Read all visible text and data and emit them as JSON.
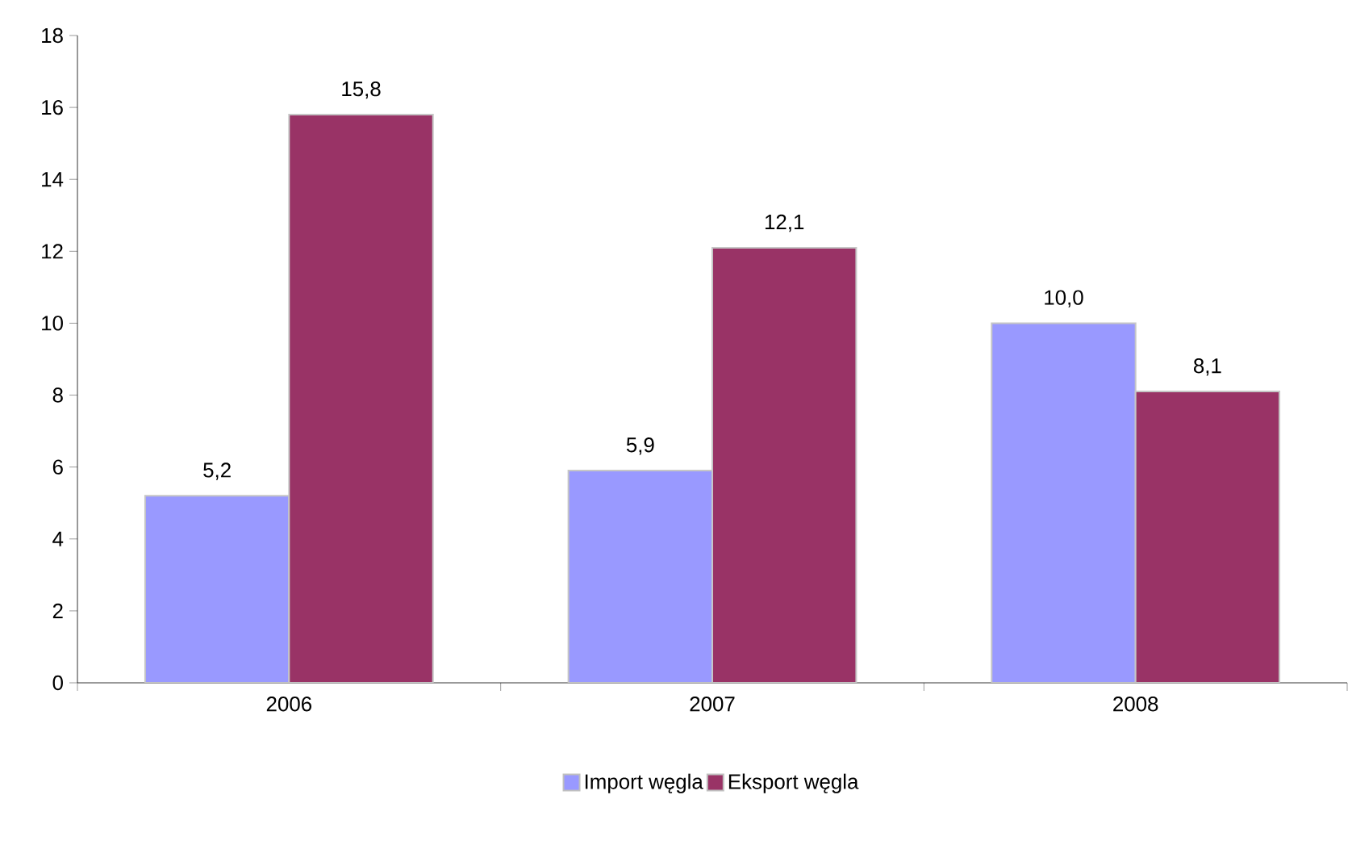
{
  "chart_data": {
    "type": "bar",
    "categories": [
      "2006",
      "2007",
      "2008"
    ],
    "series": [
      {
        "name": "Import węgla",
        "color": "#9999ff",
        "values": [
          5.2,
          5.9,
          10.0
        ],
        "value_labels": [
          "5,2",
          "5,9",
          "10,0"
        ]
      },
      {
        "name": "Eksport węgla",
        "color": "#993366",
        "values": [
          15.8,
          12.1,
          8.1
        ],
        "value_labels": [
          "15,8",
          "12,1",
          "8,1"
        ]
      }
    ],
    "ylim": [
      0,
      18
    ],
    "yticks": [
      0,
      2,
      4,
      6,
      8,
      10,
      12,
      14,
      16,
      18
    ],
    "grid": false,
    "legend": "bottom"
  }
}
